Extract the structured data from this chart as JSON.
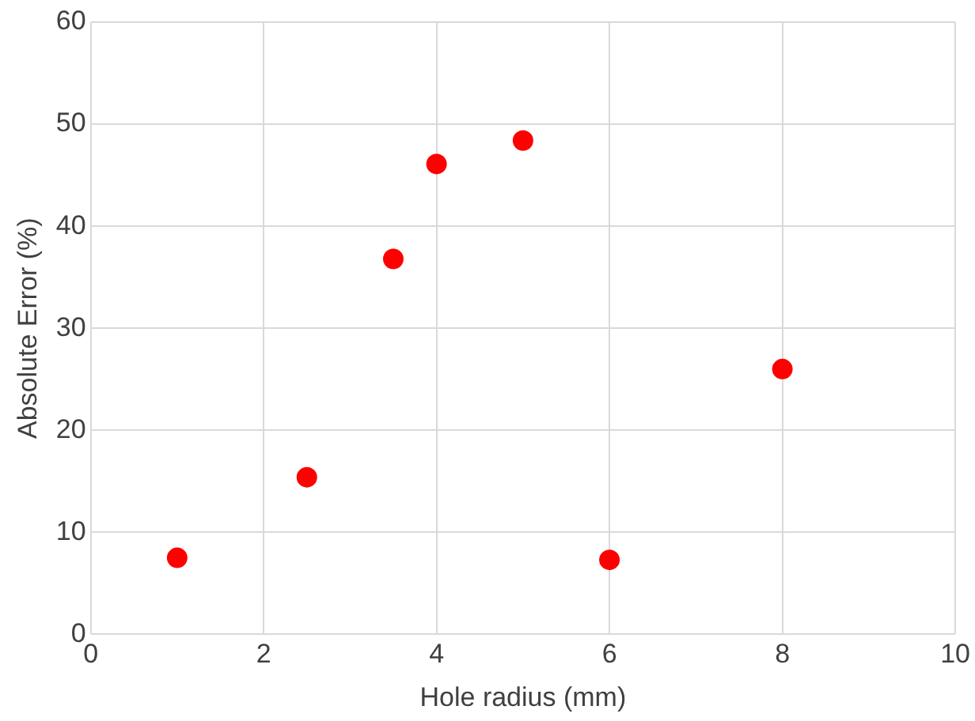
{
  "chart_data": {
    "type": "scatter",
    "xlabel": "Hole radius (mm)",
    "ylabel": "Absolute Error (%)",
    "x": [
      1,
      2.5,
      3.5,
      4,
      5,
      6,
      8
    ],
    "series": [
      {
        "color": "#ff0000",
        "values": [
          7.5,
          15.4,
          36.8,
          46.1,
          48.4,
          7.3,
          26.0
        ]
      }
    ],
    "xlim": [
      0,
      10
    ],
    "xticks": [
      0,
      2,
      4,
      6,
      8,
      10
    ],
    "ylim": [
      0,
      60
    ],
    "yticks": [
      0,
      10,
      20,
      30,
      40,
      50,
      60
    ],
    "grid": true,
    "legend": false,
    "marker": "circle"
  }
}
